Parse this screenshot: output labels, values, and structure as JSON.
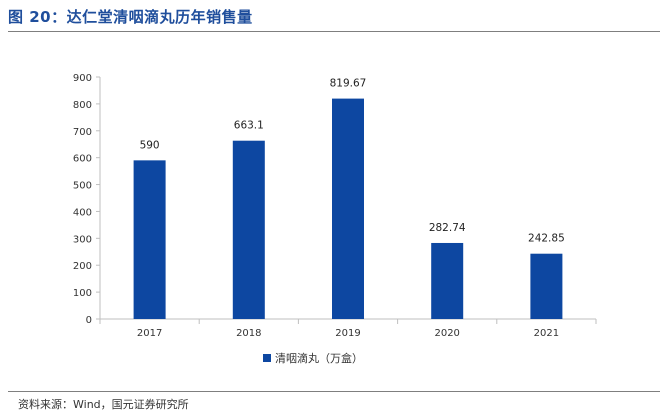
{
  "figure": {
    "title": "图 20：达仁堂清咽滴丸历年销售量",
    "source": "资料来源：Wind，国元证券研究所"
  },
  "colors": {
    "bar": "#0d47a1",
    "title": "#1f4e9c",
    "axis": "#bfbfbf"
  },
  "chart_data": {
    "type": "bar",
    "categories": [
      "2017",
      "2018",
      "2019",
      "2020",
      "2021"
    ],
    "series": [
      {
        "name": "清咽滴丸（万盒）",
        "values": [
          590,
          663.1,
          819.67,
          282.74,
          242.85
        ]
      }
    ],
    "data_labels": [
      "590",
      "663.1",
      "819.67",
      "282.74",
      "242.85"
    ],
    "ylim": [
      0,
      900
    ],
    "yticks": [
      0,
      100,
      200,
      300,
      400,
      500,
      600,
      700,
      800,
      900
    ],
    "legend_position": "bottom-center",
    "grid": false
  }
}
